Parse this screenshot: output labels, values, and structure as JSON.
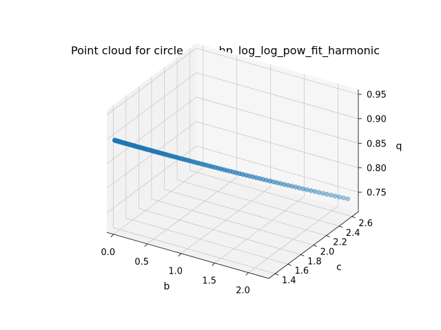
{
  "chart_data": {
    "type": "scatter",
    "title": "Point cloud for circle_area_hp_log_log_pow_fit_harmonic",
    "xlabel": "b",
    "ylabel": "c",
    "zlabel": "q",
    "x_ticks": [
      "0.0",
      "0.5",
      "1.0",
      "1.5",
      "2.0"
    ],
    "y_ticks": [
      "1.4",
      "1.6",
      "1.8",
      "2.0",
      "2.2",
      "2.4",
      "2.6"
    ],
    "z_ticks": [
      "0.75",
      "0.80",
      "0.85",
      "0.90",
      "0.95"
    ],
    "xlim": [
      -0.1,
      2.3
    ],
    "ylim": [
      1.3,
      2.7
    ],
    "zlim": [
      0.71,
      0.96
    ],
    "grid": true,
    "point_color": "#1f77b4",
    "series": [
      {
        "x_start": 0.0,
        "x_end": 2.2,
        "n_points": 100,
        "c_formula": "c = 1.32 + 0.6*b",
        "q_formula": "q = 0.90*exp(-0.09*b)"
      }
    ]
  }
}
